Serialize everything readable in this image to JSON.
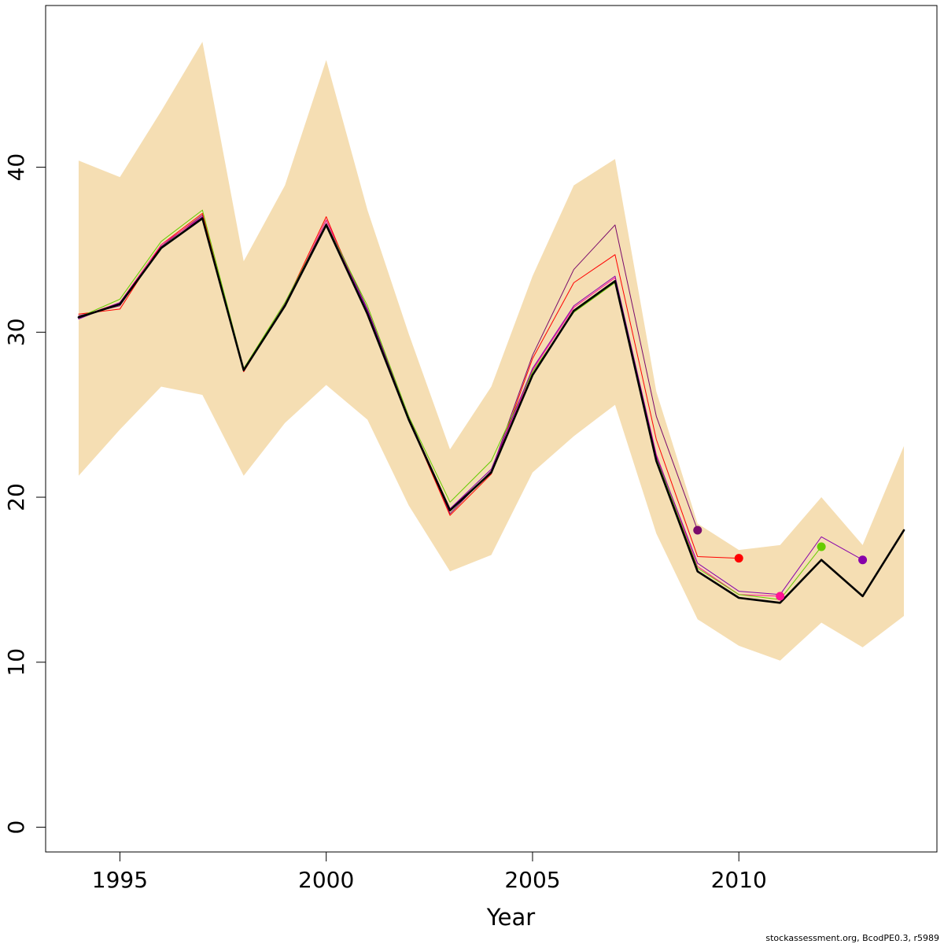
{
  "chart_data": {
    "type": "line",
    "title": "",
    "xlabel": "Year",
    "ylabel": "",
    "xlim": [
      1993.2,
      2014.8
    ],
    "ylim": [
      -1.5,
      49.8
    ],
    "x_ticks": [
      1995,
      2000,
      2005,
      2010
    ],
    "x_tick_labels": [
      "1995",
      "2000",
      "2005",
      "2010"
    ],
    "y_ticks": [
      0,
      10,
      20,
      30,
      40
    ],
    "y_tick_labels": [
      "0",
      "10",
      "20",
      "30",
      "40"
    ],
    "grid": false,
    "band": {
      "color": "#F5DEB3",
      "x": [
        1994,
        1995,
        1996,
        1997,
        1998,
        1999,
        2000,
        2001,
        2002,
        2003,
        2004,
        2005,
        2006,
        2007,
        2008,
        2009,
        2010,
        2011,
        2012,
        2013,
        2014
      ],
      "upper": [
        40.4,
        39.4,
        43.4,
        47.6,
        34.3,
        38.9,
        46.5,
        37.4,
        29.9,
        22.9,
        26.7,
        33.4,
        38.9,
        40.5,
        26.4,
        18.4,
        16.8,
        17.1,
        20.0,
        17.1,
        23.1
      ],
      "lower": [
        21.3,
        24.1,
        26.7,
        26.2,
        21.3,
        24.5,
        26.8,
        24.7,
        19.5,
        15.5,
        16.5,
        21.5,
        23.7,
        25.6,
        17.8,
        12.6,
        11.0,
        10.1,
        12.4,
        10.9,
        12.8
      ]
    },
    "series": [
      {
        "color": "#7A0A6B",
        "width": 1,
        "x": [
          1994,
          1995,
          1996,
          1997,
          1998,
          1999,
          2000,
          2001,
          2002,
          2003,
          2004,
          2005,
          2006,
          2007,
          2008,
          2009
        ],
        "values": [
          31.0,
          31.6,
          35.2,
          37.1,
          27.7,
          31.6,
          36.8,
          31.4,
          24.9,
          19.0,
          21.6,
          28.6,
          33.8,
          36.5,
          24.9,
          18.0
        ],
        "endpoint": {
          "x": 2009,
          "y": 18.0
        }
      },
      {
        "color": "#FF0000",
        "width": 1,
        "x": [
          1994,
          1995,
          1996,
          1997,
          1998,
          1999,
          2000,
          2001,
          2002,
          2003,
          2004,
          2005,
          2006,
          2007,
          2008,
          2009,
          2010
        ],
        "values": [
          31.1,
          31.4,
          35.3,
          37.2,
          27.6,
          31.7,
          37.0,
          31.0,
          24.7,
          18.9,
          21.4,
          28.4,
          33.0,
          34.7,
          23.5,
          16.4,
          16.3
        ],
        "endpoint": {
          "x": 2010,
          "y": 16.3
        }
      },
      {
        "color": "#FF1493",
        "width": 1,
        "x": [
          1994,
          1995,
          1996,
          1997,
          1998,
          1999,
          2000,
          2001,
          2002,
          2003,
          2004,
          2005,
          2006,
          2007,
          2008,
          2009,
          2010,
          2011
        ],
        "values": [
          30.9,
          31.8,
          35.3,
          37.0,
          27.7,
          31.6,
          36.8,
          31.2,
          24.7,
          19.3,
          21.5,
          27.7,
          31.5,
          33.3,
          22.6,
          15.8,
          14.1,
          14.0
        ],
        "endpoint": {
          "x": 2011,
          "y": 14.0
        }
      },
      {
        "color": "#66CC00",
        "width": 1,
        "x": [
          1994,
          1995,
          1996,
          1997,
          1998,
          1999,
          2000,
          2001,
          2002,
          2003,
          2004,
          2005,
          2006,
          2007,
          2008,
          2009,
          2010,
          2011,
          2012
        ],
        "values": [
          30.9,
          32.0,
          35.5,
          37.4,
          27.8,
          31.8,
          36.6,
          31.6,
          24.9,
          19.7,
          22.2,
          27.6,
          31.2,
          33.0,
          22.4,
          15.7,
          14.1,
          13.8,
          17.0
        ],
        "endpoint": {
          "x": 2012,
          "y": 17.0
        }
      },
      {
        "color": "#8800AA",
        "width": 1,
        "x": [
          1994,
          1995,
          1996,
          1997,
          1998,
          1999,
          2000,
          2001,
          2002,
          2003,
          2004,
          2005,
          2006,
          2007,
          2008,
          2009,
          2010,
          2011,
          2012,
          2013
        ],
        "values": [
          30.8,
          31.8,
          35.1,
          37.0,
          27.7,
          31.7,
          36.6,
          31.3,
          24.8,
          19.3,
          21.7,
          27.8,
          31.6,
          33.4,
          22.5,
          16.0,
          14.3,
          14.1,
          17.6,
          16.2
        ],
        "endpoint": {
          "x": 2013,
          "y": 16.2
        }
      },
      {
        "color": "#000000",
        "width": 2.6,
        "x": [
          1994,
          1995,
          1996,
          1997,
          1998,
          1999,
          2000,
          2001,
          2002,
          2003,
          2004,
          2005,
          2006,
          2007,
          2008,
          2009,
          2010,
          2011,
          2012,
          2013,
          2014
        ],
        "values": [
          30.9,
          31.7,
          35.1,
          36.9,
          27.7,
          31.6,
          36.5,
          31.1,
          24.7,
          19.2,
          21.5,
          27.4,
          31.3,
          33.1,
          22.2,
          15.5,
          13.9,
          13.6,
          16.2,
          14.0,
          18.0
        ]
      }
    ]
  },
  "footer": {
    "credit": "stockassessment.org, BcodPE0.3, r5989"
  }
}
